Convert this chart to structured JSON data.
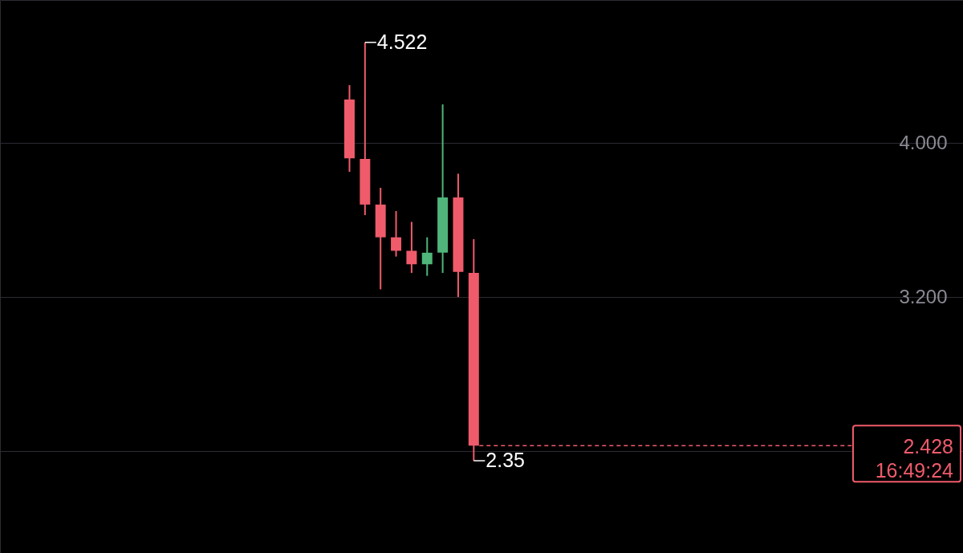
{
  "chart_data": {
    "type": "candlestick",
    "categories": [
      null,
      null,
      null,
      null,
      null,
      null,
      null,
      null,
      null,
      null,
      null,
      null,
      null,
      null,
      null,
      null,
      null,
      null,
      null,
      null,
      null,
      null,
      null,
      null,
      null,
      null,
      null,
      null,
      null,
      null,
      null,
      null,
      null,
      null,
      null,
      null,
      null,
      null,
      null,
      null,
      null,
      null,
      null,
      null,
      null,
      null,
      null,
      null,
      null,
      null,
      null,
      null,
      null,
      null,
      null,
      null,
      null,
      null,
      null,
      null,
      null,
      null
    ],
    "ohlc": [
      null,
      null,
      null,
      null,
      null,
      null,
      null,
      null,
      null,
      null,
      null,
      null,
      null,
      null,
      null,
      null,
      null,
      null,
      null,
      null,
      null,
      null,
      [
        4.225,
        4.3,
        3.85,
        3.92
      ],
      [
        3.917,
        4.522,
        3.625,
        3.68
      ],
      [
        3.68,
        3.767,
        3.24,
        3.51
      ],
      [
        3.51,
        3.646,
        3.41,
        3.44
      ],
      [
        3.44,
        3.59,
        3.325,
        3.37
      ],
      [
        3.37,
        3.51,
        3.31,
        3.43
      ],
      [
        3.43,
        4.2,
        3.325,
        3.717
      ],
      [
        3.717,
        3.84,
        3.2,
        3.33
      ],
      [
        3.325,
        3.5,
        2.35,
        2.428
      ],
      null,
      null,
      null,
      null,
      null,
      null,
      null,
      null,
      null,
      null,
      null,
      null,
      null,
      null,
      null,
      null,
      null,
      null,
      null,
      null,
      null,
      null,
      null,
      null,
      null,
      null,
      null,
      null,
      null,
      null,
      null
    ],
    "colors": [
      null,
      null,
      null,
      null,
      null,
      null,
      null,
      null,
      null,
      null,
      null,
      null,
      null,
      null,
      null,
      null,
      null,
      null,
      null,
      null,
      null,
      null,
      "#ef5b6b",
      "#ef5b6b",
      "#ef5b6b",
      "#ef5b6b",
      "#ef5b6b",
      "#4fb57a",
      "#4fb57a",
      "#ef5b6b",
      "#ef5b6b",
      null,
      null,
      null,
      null,
      null,
      null,
      null,
      null,
      null,
      null,
      null,
      null,
      null,
      null,
      null,
      null,
      null,
      null,
      null,
      null,
      null,
      null,
      null,
      null,
      null,
      null,
      null,
      null,
      null,
      null,
      null
    ],
    "ylim": [
      1.871,
      4.742
    ],
    "yticks": [
      {
        "value": 4.0,
        "label": "4.000"
      },
      {
        "value": 3.2,
        "label": "3.200"
      },
      {
        "value": 2.4,
        "label": null
      }
    ],
    "grid": "y",
    "tick_labels": "y",
    "ref_lines": [
      {
        "axis": "y",
        "value": 2.428,
        "label": "2.428",
        "color": "#ef5b6b",
        "line_style": "dashed"
      }
    ],
    "annotations": [
      "4.522",
      "2.35",
      "16:49:24"
    ]
  }
}
